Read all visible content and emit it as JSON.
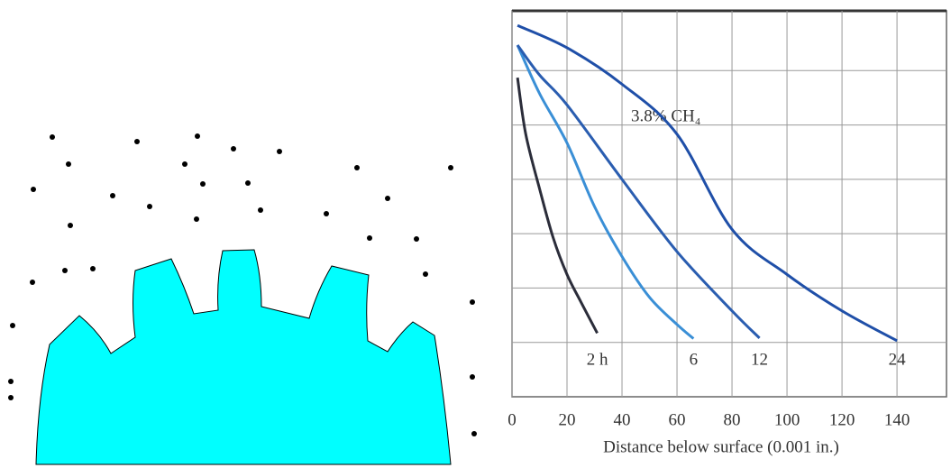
{
  "chart_data": {
    "type": "line",
    "annotation": "3.8% CH₄",
    "x_label": "Distance below surface (0.001 in.)",
    "xlim": [
      0,
      158
    ],
    "ylim": [
      0,
      7.1
    ],
    "xticks": [
      0,
      20,
      40,
      60,
      80,
      100,
      120,
      140
    ],
    "ygrid": [
      1,
      2,
      3,
      4,
      5,
      6
    ],
    "grid": true,
    "series": [
      {
        "name": "2 h",
        "color": "#2b2d3a",
        "x": [
          2,
          5,
          10,
          15,
          20,
          25,
          31
        ],
        "values": [
          5.87,
          4.83,
          3.83,
          2.92,
          2.25,
          1.75,
          1.17
        ]
      },
      {
        "name": "6",
        "color": "#3a8fd6",
        "x": [
          2,
          10,
          20,
          30,
          40,
          50,
          60,
          66
        ],
        "values": [
          6.47,
          5.58,
          4.67,
          3.5,
          2.58,
          1.83,
          1.33,
          1.07
        ]
      },
      {
        "name": "12",
        "color": "#2a5db0",
        "x": [
          2,
          10,
          20,
          40,
          60,
          80,
          90
        ],
        "values": [
          6.47,
          5.92,
          5.37,
          4.0,
          2.67,
          1.58,
          1.08
        ]
      },
      {
        "name": "24",
        "color": "#1f4fa8",
        "x": [
          2,
          20,
          40,
          60,
          80,
          100,
          120,
          140
        ],
        "values": [
          6.83,
          6.42,
          5.75,
          4.83,
          3.08,
          2.25,
          1.58,
          1.03
        ]
      }
    ]
  }
}
